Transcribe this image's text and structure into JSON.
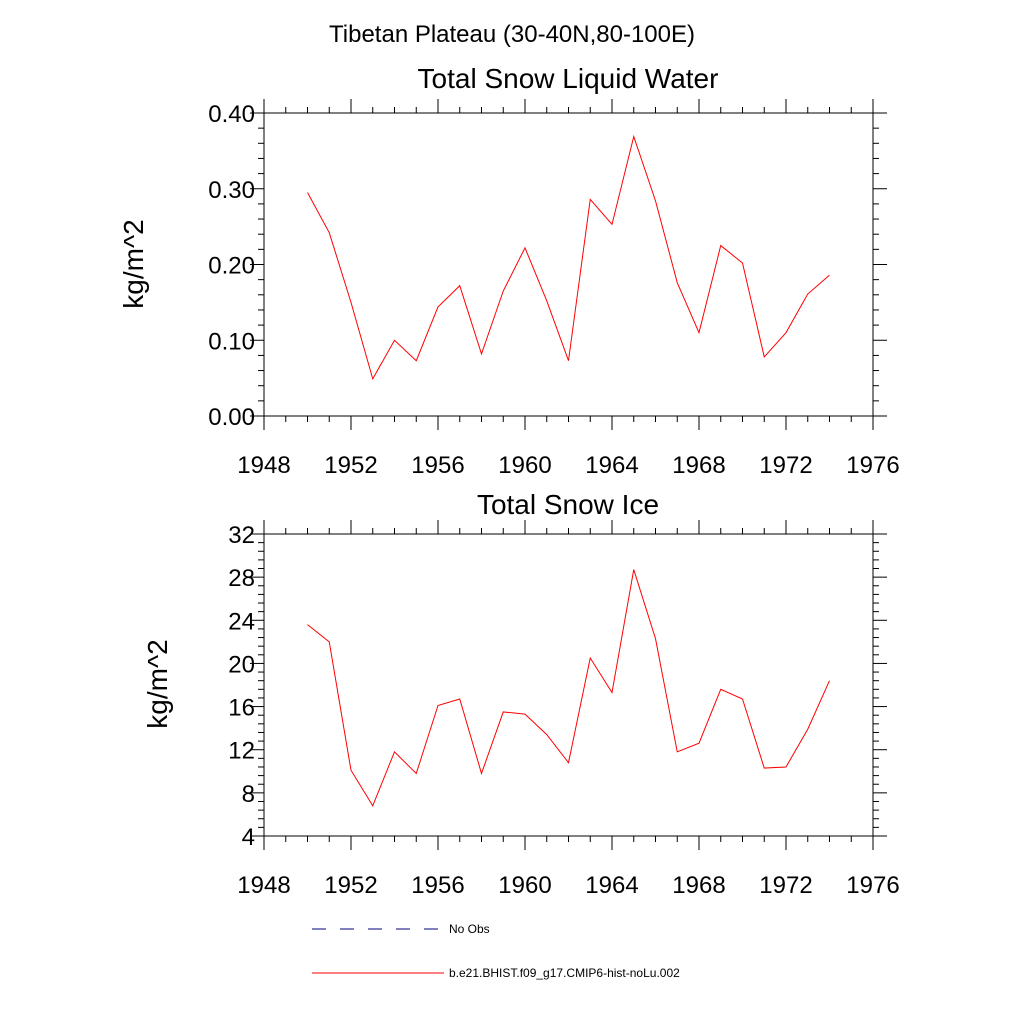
{
  "figure": {
    "suptitle": "Tibetan Plateau (30-40N,80-100E)"
  },
  "chart_data": [
    {
      "type": "line",
      "title": "Total Snow Liquid Water",
      "xlabel": "",
      "ylabel": "kg/m^2",
      "xlim": [
        1948,
        1976
      ],
      "ylim": [
        0.0,
        0.4
      ],
      "x_ticks": [
        1948,
        1952,
        1956,
        1960,
        1964,
        1968,
        1972,
        1976
      ],
      "x_tick_labels": [
        "1948",
        "1952",
        "1956",
        "1960",
        "1964",
        "1968",
        "1972",
        "1976"
      ],
      "y_ticks": [
        0.0,
        0.1,
        0.2,
        0.3,
        0.4
      ],
      "y_tick_labels": [
        "0.00",
        "0.10",
        "0.20",
        "0.30",
        "0.40"
      ],
      "grid": false,
      "x": [
        1950,
        1951,
        1952,
        1953,
        1954,
        1955,
        1956,
        1957,
        1958,
        1959,
        1960,
        1961,
        1962,
        1963,
        1964,
        1965,
        1966,
        1967,
        1968,
        1969,
        1970,
        1971,
        1972,
        1973,
        1974
      ],
      "series": [
        {
          "name": "b.e21.BHIST.f09_g17.CMIP6-hist-noLu.002",
          "color": "#ff0000",
          "values": [
            0.295,
            0.242,
            0.15,
            0.049,
            0.1,
            0.073,
            0.144,
            0.172,
            0.082,
            0.165,
            0.222,
            0.152,
            0.073,
            0.286,
            0.253,
            0.369,
            0.284,
            0.176,
            0.11,
            0.225,
            0.202,
            0.078,
            0.11,
            0.161,
            0.186
          ]
        }
      ]
    },
    {
      "type": "line",
      "title": "Total Snow Ice",
      "xlabel": "",
      "ylabel": "kg/m^2",
      "xlim": [
        1948,
        1976
      ],
      "ylim": [
        4,
        32
      ],
      "x_ticks": [
        1948,
        1952,
        1956,
        1960,
        1964,
        1968,
        1972,
        1976
      ],
      "x_tick_labels": [
        "1948",
        "1952",
        "1956",
        "1960",
        "1964",
        "1968",
        "1972",
        "1976"
      ],
      "y_ticks": [
        4,
        8,
        12,
        16,
        20,
        24,
        28,
        32
      ],
      "y_tick_labels": [
        "4",
        "8",
        "12",
        "16",
        "20",
        "24",
        "28",
        "32"
      ],
      "grid": false,
      "x": [
        1950,
        1951,
        1952,
        1953,
        1954,
        1955,
        1956,
        1957,
        1958,
        1959,
        1960,
        1961,
        1962,
        1963,
        1964,
        1965,
        1966,
        1967,
        1968,
        1969,
        1970,
        1971,
        1972,
        1973,
        1974
      ],
      "series": [
        {
          "name": "b.e21.BHIST.f09_g17.CMIP6-hist-noLu.002",
          "color": "#ff0000",
          "values": [
            23.6,
            22.0,
            10.1,
            6.8,
            11.8,
            9.8,
            16.1,
            16.7,
            9.8,
            15.5,
            15.3,
            13.4,
            10.8,
            20.5,
            17.3,
            28.7,
            22.3,
            11.8,
            12.6,
            17.6,
            16.7,
            10.3,
            10.4,
            13.9,
            18.4
          ]
        }
      ]
    }
  ],
  "legend": {
    "items": [
      {
        "label": "No Obs",
        "style": "dashed",
        "color": "#000080"
      },
      {
        "label": "b.e21.BHIST.f09_g17.CMIP6-hist-noLu.002",
        "style": "solid",
        "color": "#ff0000"
      }
    ]
  }
}
